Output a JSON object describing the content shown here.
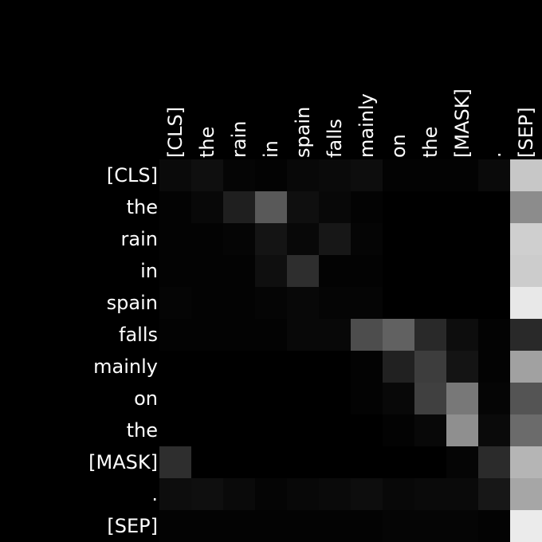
{
  "chart_data": {
    "type": "heatmap",
    "title": "",
    "xlabel": "",
    "ylabel": "",
    "x_labels": [
      "[CLS]",
      "the",
      "rain",
      "in",
      "spain",
      "falls",
      "mainly",
      "on",
      "the",
      "[MASK]",
      ".",
      "[SEP]"
    ],
    "y_labels": [
      "[CLS]",
      "the",
      "rain",
      "in",
      "spain",
      "falls",
      "mainly",
      "on",
      "the",
      "[MASK]",
      ".",
      "[SEP]"
    ],
    "colormap": "grayscale (black = 0, white = 1)",
    "value_range": [
      0,
      1
    ],
    "values": [
      [
        0.04,
        0.06,
        0.02,
        0.01,
        0.03,
        0.04,
        0.05,
        0.01,
        0.01,
        0.01,
        0.04,
        0.78
      ],
      [
        0.01,
        0.03,
        0.12,
        0.35,
        0.06,
        0.03,
        0.01,
        0.0,
        0.0,
        0.0,
        0.0,
        0.55
      ],
      [
        0.01,
        0.01,
        0.02,
        0.08,
        0.03,
        0.09,
        0.02,
        0.0,
        0.0,
        0.0,
        0.0,
        0.81
      ],
      [
        0.01,
        0.01,
        0.01,
        0.06,
        0.18,
        0.01,
        0.01,
        0.0,
        0.0,
        0.0,
        0.0,
        0.8
      ],
      [
        0.02,
        0.01,
        0.01,
        0.02,
        0.03,
        0.02,
        0.02,
        0.0,
        0.0,
        0.0,
        0.0,
        0.91
      ],
      [
        0.01,
        0.01,
        0.01,
        0.01,
        0.03,
        0.03,
        0.3,
        0.38,
        0.16,
        0.05,
        0.01,
        0.16
      ],
      [
        0.0,
        0.0,
        0.0,
        0.0,
        0.0,
        0.0,
        0.01,
        0.13,
        0.24,
        0.08,
        0.01,
        0.63
      ],
      [
        0.0,
        0.0,
        0.0,
        0.0,
        0.0,
        0.0,
        0.01,
        0.03,
        0.25,
        0.47,
        0.02,
        0.33
      ],
      [
        0.0,
        0.0,
        0.0,
        0.0,
        0.0,
        0.0,
        0.0,
        0.01,
        0.03,
        0.56,
        0.04,
        0.42
      ],
      [
        0.18,
        0.0,
        0.0,
        0.0,
        0.0,
        0.0,
        0.0,
        0.0,
        0.0,
        0.02,
        0.17,
        0.71
      ],
      [
        0.05,
        0.06,
        0.04,
        0.02,
        0.03,
        0.04,
        0.05,
        0.03,
        0.04,
        0.04,
        0.09,
        0.65
      ],
      [
        0.01,
        0.01,
        0.01,
        0.01,
        0.01,
        0.01,
        0.01,
        0.02,
        0.02,
        0.02,
        0.01,
        0.92
      ]
    ]
  }
}
